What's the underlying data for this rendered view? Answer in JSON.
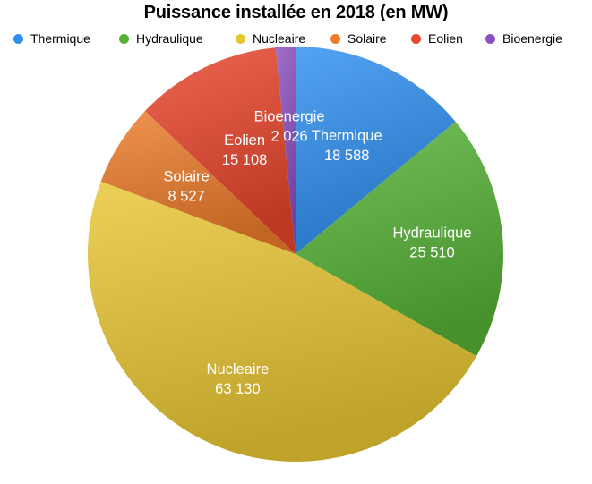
{
  "chart_data": {
    "type": "pie",
    "title": "Puissance installée en 2018 (en MW)",
    "legend_position": "top",
    "slices": [
      {
        "label": "Thermique",
        "value_label": "18 588",
        "value": 18588,
        "color": "#2f8ff0"
      },
      {
        "label": "Hydraulique",
        "value_label": "25 510",
        "value": 25510,
        "color": "#56b236"
      },
      {
        "label": "Nucleaire",
        "value_label": "63 130",
        "value": 63130,
        "color": "#e8c632"
      },
      {
        "label": "Solaire",
        "value_label": "8 527",
        "value": 8527,
        "color": "#ec7b2b"
      },
      {
        "label": "Eolien",
        "value_label": "15 108",
        "value": 15108,
        "color": "#e8452c"
      },
      {
        "label": "Bioenergie",
        "value_label": "2 026",
        "value": 2026,
        "color": "#8a4fc0"
      }
    ]
  }
}
